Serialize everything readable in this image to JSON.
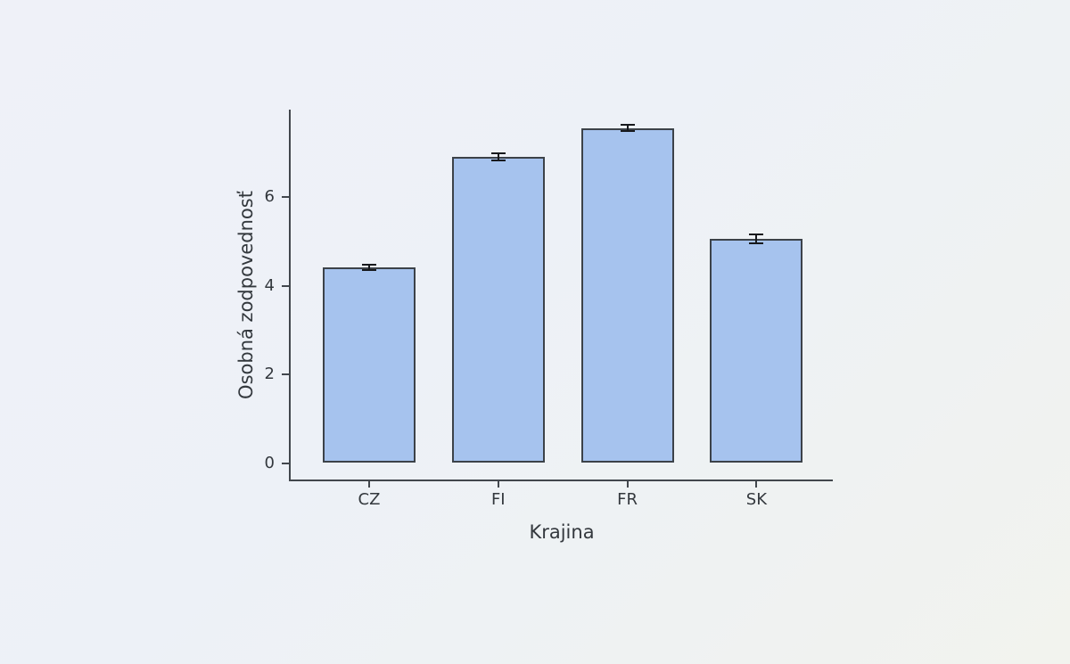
{
  "chart_data": {
    "type": "bar",
    "title": "",
    "xlabel": "Krajina",
    "ylabel": "Osobná zodpovednosť",
    "categories": [
      "CZ",
      "FI",
      "FR",
      "SK"
    ],
    "values": [
      4.41,
      6.9,
      7.55,
      5.06
    ],
    "errors": [
      0.06,
      0.08,
      0.07,
      0.1
    ],
    "yticks": [
      "0",
      "2",
      "4",
      "6"
    ],
    "ytick_values": [
      0,
      2,
      4,
      6
    ],
    "ylim": [
      -0.39,
      7.97
    ],
    "grid": false,
    "legend": null,
    "error_bar_caps": true,
    "colors": {
      "bar_fill": "#a6c3ee",
      "bar_edge": "#3c4249",
      "error_bar": "#17191d",
      "axis": "#42474d",
      "text": "#33383d",
      "background_start": "#eff1f8",
      "background_end": "#f2f3ee"
    }
  }
}
